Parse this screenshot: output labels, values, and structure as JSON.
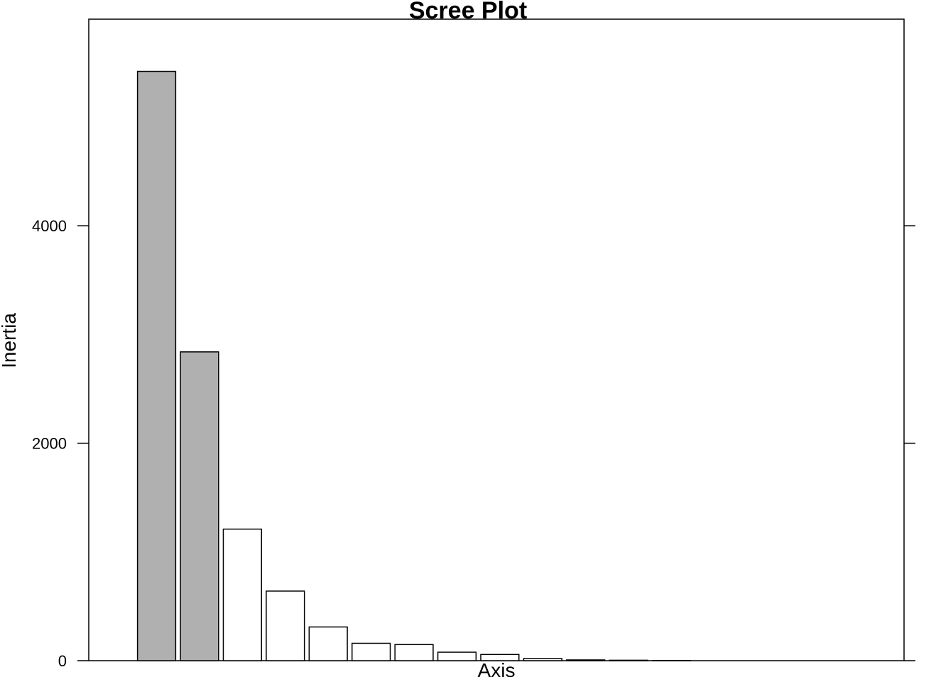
{
  "chart_data": {
    "type": "bar",
    "title": "Scree Plot",
    "xlabel": "Axis",
    "ylabel": "Inertia",
    "ylim": [
      0,
      5900
    ],
    "yticks": [
      0,
      2000,
      4000
    ],
    "ytick_labels": [
      "0",
      "2000",
      "4000"
    ],
    "x_slots": 19,
    "values": [
      5420,
      2840,
      1210,
      640,
      310,
      160,
      148,
      78,
      57,
      20,
      7,
      4,
      2
    ],
    "selected_count": 2,
    "colors": {
      "selected": "#b0b0b0",
      "unselected": "#ffffff",
      "stroke": "#000000"
    },
    "grid": false,
    "legend": "none"
  }
}
